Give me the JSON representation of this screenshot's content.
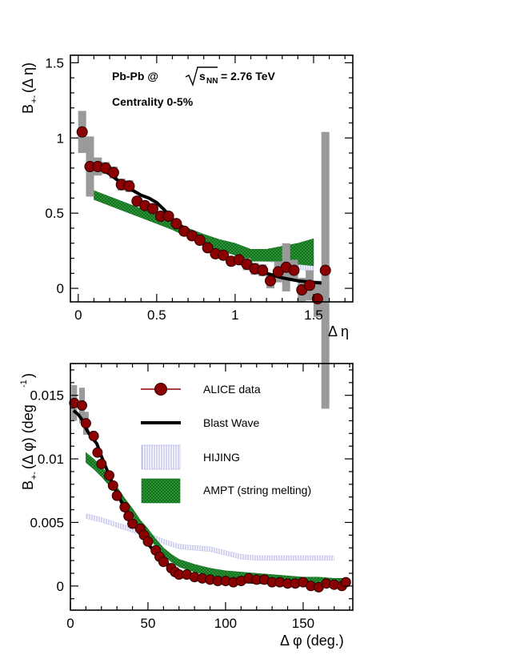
{
  "chart_data": [
    {
      "type": "scatter",
      "panel": "top",
      "xlabel": "Δ η",
      "ylabel": "B+(Δ η)",
      "ylabel_main": "B",
      "ylabel_sub": "+-",
      "ylabel_tail": "(Δ η)",
      "xlim": [
        -0.05,
        1.75
      ],
      "ylim": [
        -0.09,
        1.55
      ],
      "xticks": [
        0,
        0.5,
        1,
        1.5
      ],
      "xtick_labels": [
        "0",
        "0.5",
        "1",
        "1.5"
      ],
      "yticks": [
        0,
        0.5,
        1,
        1.5
      ],
      "ytick_labels": [
        "0",
        "0.5",
        "1",
        "1.5"
      ],
      "annotations": {
        "system": "Pb-Pb @",
        "sqrt_var": "s",
        "sqrt_sub": "NN",
        "energy": "= 2.76 TeV",
        "centrality": "Centrality 0-5%"
      },
      "series": [
        {
          "name": "ALICE data",
          "style": "marker",
          "x": [
            0.025,
            0.075,
            0.125,
            0.175,
            0.225,
            0.275,
            0.325,
            0.375,
            0.425,
            0.475,
            0.525,
            0.575,
            0.625,
            0.675,
            0.725,
            0.775,
            0.825,
            0.875,
            0.925,
            0.975,
            1.025,
            1.075,
            1.125,
            1.175,
            1.225,
            1.275,
            1.325,
            1.375,
            1.425,
            1.475,
            1.525,
            1.575
          ],
          "y": [
            1.04,
            0.81,
            0.81,
            0.8,
            0.77,
            0.69,
            0.68,
            0.58,
            0.55,
            0.53,
            0.48,
            0.48,
            0.43,
            0.38,
            0.35,
            0.32,
            0.27,
            0.23,
            0.22,
            0.18,
            0.19,
            0.16,
            0.13,
            0.12,
            0.05,
            0.11,
            0.14,
            0.12,
            -0.01,
            0.02,
            -0.07,
            0.12
          ],
          "syst": [
            0.14,
            0.2,
            0.06,
            0.04,
            0.04,
            0.04,
            0.04,
            0.03,
            0.03,
            0.03,
            0.03,
            0.03,
            0.03,
            0.03,
            0.03,
            0.03,
            0.03,
            0.03,
            0.03,
            0.03,
            0.03,
            0.04,
            0.04,
            0.04,
            0.05,
            0.07,
            0.16,
            0.07,
            0.08,
            0.1,
            0.12,
            0.92
          ]
        },
        {
          "name": "Blast Wave",
          "style": "line",
          "x": [
            0.05,
            0.1,
            0.15,
            0.2,
            0.25,
            0.3,
            0.35,
            0.4,
            0.45,
            0.5,
            0.55,
            0.6,
            0.7,
            0.8,
            0.9,
            1.0,
            1.1,
            1.2,
            1.3,
            1.4,
            1.5,
            1.55
          ],
          "y": [
            0.83,
            0.8,
            0.79,
            0.76,
            0.72,
            0.68,
            0.65,
            0.62,
            0.6,
            0.57,
            0.52,
            0.46,
            0.38,
            0.3,
            0.23,
            0.18,
            0.14,
            0.1,
            0.07,
            0.05,
            0.04,
            0.035
          ]
        },
        {
          "name": "HIJING",
          "style": "band",
          "x": [
            0.1,
            0.2,
            0.3,
            0.4,
            0.5,
            0.6,
            0.7,
            0.8,
            0.9,
            1.0,
            1.1,
            1.2,
            1.3,
            1.4,
            1.5
          ],
          "y": [
            0.63,
            0.58,
            0.54,
            0.5,
            0.46,
            0.42,
            0.37,
            0.34,
            0.29,
            0.26,
            0.22,
            0.21,
            0.2,
            0.18,
            0.16
          ],
          "width": [
            0.02,
            0.02,
            0.02,
            0.02,
            0.02,
            0.02,
            0.02,
            0.02,
            0.03,
            0.03,
            0.03,
            0.03,
            0.04,
            0.05,
            0.05
          ]
        },
        {
          "name": "AMPT (string melting)",
          "style": "band",
          "x": [
            0.1,
            0.2,
            0.3,
            0.4,
            0.5,
            0.6,
            0.7,
            0.8,
            0.9,
            1.0,
            1.1,
            1.2,
            1.3,
            1.4,
            1.5
          ],
          "y": [
            0.62,
            0.58,
            0.54,
            0.5,
            0.46,
            0.42,
            0.37,
            0.33,
            0.29,
            0.26,
            0.22,
            0.22,
            0.23,
            0.23,
            0.24
          ],
          "width": [
            0.03,
            0.03,
            0.03,
            0.03,
            0.03,
            0.03,
            0.03,
            0.03,
            0.035,
            0.04,
            0.04,
            0.04,
            0.05,
            0.07,
            0.09
          ]
        }
      ]
    },
    {
      "type": "scatter",
      "panel": "bottom",
      "xlabel": "Δ φ (deg.)",
      "ylabel_main": "B",
      "ylabel_sub": "+-",
      "ylabel_tail": "(Δ φ) (deg",
      "ylabel_sup": "-1",
      "ylabel_close": ")",
      "xlim": [
        0,
        182
      ],
      "ylim": [
        -0.0019,
        0.0175
      ],
      "xticks": [
        0,
        50,
        100,
        150
      ],
      "xtick_labels": [
        "0",
        "50",
        "100",
        "150"
      ],
      "yticks": [
        0,
        0.005,
        0.01,
        0.015
      ],
      "ytick_labels": [
        "0",
        "0.005",
        "0.01",
        "0.015"
      ],
      "legend": [
        "ALICE data",
        "Blast Wave",
        "HIJING",
        "AMPT (string melting)"
      ],
      "series": [
        {
          "name": "ALICE data",
          "style": "marker",
          "x": [
            2.5,
            7.5,
            10,
            15,
            17.5,
            20,
            25,
            27.5,
            30,
            35,
            37.5,
            40,
            45,
            47.5,
            50,
            55,
            57.5,
            60,
            65,
            67.5,
            70,
            75,
            80,
            85,
            90,
            95,
            100,
            105,
            110,
            115,
            120,
            125,
            130,
            135,
            140,
            145,
            150,
            155,
            160,
            165,
            170,
            175,
            177.5
          ],
          "y": [
            0.0144,
            0.0142,
            0.0128,
            0.0118,
            0.0105,
            0.0096,
            0.0087,
            0.0079,
            0.0071,
            0.0062,
            0.0055,
            0.0049,
            0.0045,
            0.004,
            0.0035,
            0.0028,
            0.0023,
            0.0019,
            0.0014,
            0.0011,
            0.0009,
            0.0009,
            0.0007,
            0.0006,
            0.0005,
            0.0004,
            0.0004,
            0.0003,
            0.0004,
            0.0006,
            0.0005,
            0.0005,
            0.0003,
            0.0003,
            0.0002,
            0.0002,
            0.0003,
            0.0,
            -0.0001,
            0.0002,
            0.0001,
            0.0,
            0.0003
          ],
          "syst": [
            0.0014,
            0.0014,
            0.0009,
            0.0004,
            0.0003,
            0.0003,
            0.0003,
            0.0002,
            0.0002,
            0.0002,
            0.0002,
            0.0002,
            0.0002,
            0.0002,
            0.0002,
            0.0002,
            0.0002,
            0.0002,
            0.0002,
            0.0002,
            0.0002,
            0.0002,
            0.0002,
            0.0002,
            0.0002,
            0.0002,
            0.0002,
            0.0002,
            0.0002,
            0.0002,
            0.0002,
            0.0002,
            0.0002,
            0.0002,
            0.0002,
            0.0002,
            0.0002,
            0.0002,
            0.0003,
            0.0002,
            0.0002,
            0.0002,
            0.0002
          ]
        },
        {
          "name": "Blast Wave",
          "style": "line",
          "x": [
            2,
            5,
            8,
            10,
            13,
            17,
            20,
            25,
            30,
            35,
            40,
            45,
            50,
            55,
            60,
            65,
            70,
            80,
            90,
            100,
            120,
            140,
            160,
            178
          ],
          "y": [
            0.0138,
            0.0135,
            0.013,
            0.0124,
            0.0118,
            0.0112,
            0.0102,
            0.0087,
            0.0073,
            0.0061,
            0.005,
            0.0041,
            0.0033,
            0.0026,
            0.002,
            0.0015,
            0.0011,
            0.0008,
            0.0006,
            0.0004,
            0.0003,
            0.0002,
            0.0001,
            0.0001
          ]
        },
        {
          "name": "HIJING",
          "style": "band",
          "x": [
            10,
            20,
            30,
            40,
            50,
            60,
            70,
            80,
            90,
            100,
            110,
            120,
            130,
            140,
            150,
            160,
            170
          ],
          "y": [
            0.0055,
            0.0052,
            0.0048,
            0.0044,
            0.004,
            0.0035,
            0.0031,
            0.003,
            0.0029,
            0.0026,
            0.0023,
            0.0022,
            0.0022,
            0.0022,
            0.0022,
            0.0022,
            0.0022
          ],
          "width": [
            0.00018,
            0.00018,
            0.00018,
            0.00018,
            0.00018,
            0.00018,
            0.00018,
            0.00018,
            0.00018,
            0.00018,
            0.00018,
            0.00018,
            0.00018,
            0.00018,
            0.00018,
            0.00018,
            0.00018
          ]
        },
        {
          "name": "AMPT (string melting)",
          "style": "band",
          "x": [
            10,
            15,
            20,
            25,
            30,
            35,
            40,
            45,
            50,
            55,
            60,
            65,
            70,
            80,
            90,
            100,
            110,
            120,
            130,
            140,
            150,
            160,
            170,
            178
          ],
          "y": [
            0.0101,
            0.0096,
            0.009,
            0.0083,
            0.0075,
            0.0066,
            0.0058,
            0.0049,
            0.0042,
            0.0034,
            0.0027,
            0.0022,
            0.0018,
            0.0014,
            0.0011,
            0.0009,
            0.0008,
            0.0007,
            0.0006,
            0.0005,
            0.0004,
            0.0004,
            0.0003,
            0.0003
          ],
          "width": [
            0.0004,
            0.0004,
            0.0004,
            0.0004,
            0.0003,
            0.0003,
            0.0003,
            0.0003,
            0.0003,
            0.0003,
            0.0003,
            0.0003,
            0.0003,
            0.0003,
            0.0003,
            0.0003,
            0.0003,
            0.0003,
            0.0003,
            0.0003,
            0.0003,
            0.0003,
            0.0003,
            0.0003
          ]
        }
      ]
    }
  ],
  "colors": {
    "marker_fill": "#8b0000",
    "marker_stroke": "#2a0000",
    "syst_box": "#9a9a9a",
    "blast_wave": "#000000",
    "hijing": "#b8b8e8",
    "ampt": "#1d8a2a"
  }
}
